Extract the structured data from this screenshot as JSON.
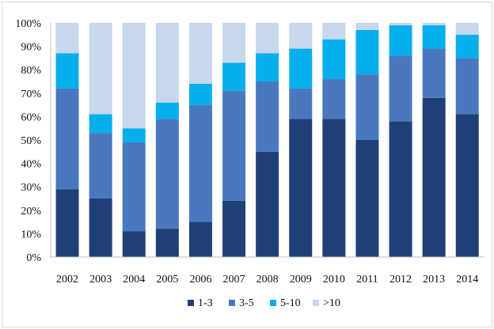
{
  "chart_data": {
    "type": "bar",
    "stacked": true,
    "title": "",
    "xlabel": "",
    "ylabel": "",
    "ylim": [
      0,
      100
    ],
    "y_tick_labels": [
      "0%",
      "10%",
      "20%",
      "30%",
      "40%",
      "50%",
      "60%",
      "70%",
      "80%",
      "90%",
      "100%"
    ],
    "y_ticks": [
      0,
      10,
      20,
      30,
      40,
      50,
      60,
      70,
      80,
      90,
      100
    ],
    "categories": [
      "2002",
      "2003",
      "2004",
      "2005",
      "2006",
      "2007",
      "2008",
      "2009",
      "2010",
      "2011",
      "2012",
      "2013",
      "2014"
    ],
    "series": [
      {
        "name": "1-3",
        "color": "#1F3F77",
        "values": [
          29,
          25,
          11,
          12,
          15,
          24,
          45,
          59,
          59,
          50,
          58,
          68,
          61
        ]
      },
      {
        "name": "3-5",
        "color": "#4A78BF",
        "values": [
          43,
          28,
          38,
          47,
          50,
          47,
          30,
          13,
          17,
          28,
          28,
          21,
          24
        ]
      },
      {
        "name": "5-10",
        "color": "#07AEEC",
        "values": [
          15,
          8,
          6,
          7,
          9,
          12,
          12,
          17,
          17,
          19,
          13,
          10,
          10
        ]
      },
      {
        "name": ">10",
        "color": "#C6D7EE",
        "values": [
          13,
          39,
          45,
          34,
          26,
          17,
          13,
          11,
          7,
          3,
          1,
          1,
          5
        ]
      }
    ],
    "legend_position": "bottom",
    "grid": false
  }
}
